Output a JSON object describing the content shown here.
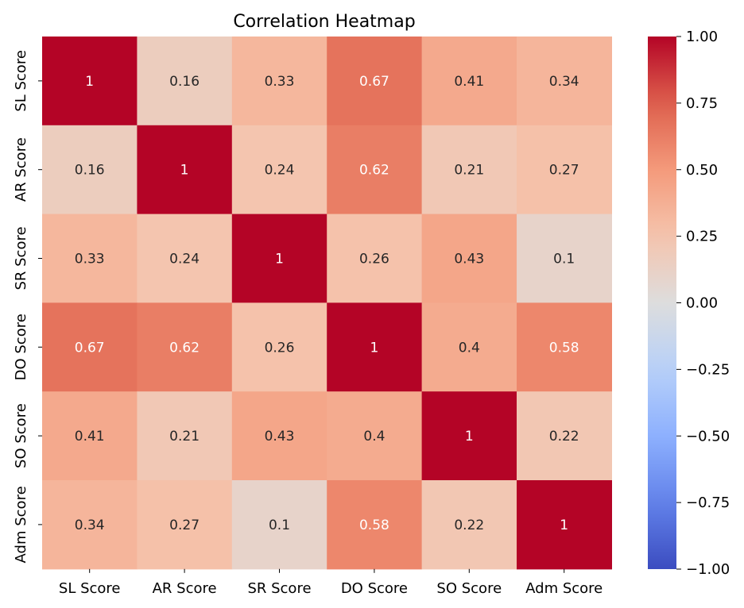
{
  "chart_data": {
    "type": "heatmap",
    "title": "Correlation Heatmap",
    "xlabel": "",
    "ylabel": "",
    "categories": [
      "SL Score",
      "AR Score",
      "SR Score",
      "DO Score",
      "SO Score",
      "Adm Score"
    ],
    "values": [
      [
        1,
        0.16,
        0.33,
        0.67,
        0.41,
        0.34
      ],
      [
        0.16,
        1,
        0.24,
        0.62,
        0.21,
        0.27
      ],
      [
        0.33,
        0.24,
        1,
        0.26,
        0.43,
        0.1
      ],
      [
        0.67,
        0.62,
        0.26,
        1,
        0.4,
        0.58
      ],
      [
        0.41,
        0.21,
        0.43,
        0.4,
        1,
        0.22
      ],
      [
        0.34,
        0.27,
        0.1,
        0.58,
        0.22,
        1
      ]
    ],
    "cell_labels": [
      [
        "1",
        "0.16",
        "0.33",
        "0.67",
        "0.41",
        "0.34"
      ],
      [
        "0.16",
        "1",
        "0.24",
        "0.62",
        "0.21",
        "0.27"
      ],
      [
        "0.33",
        "0.24",
        "1",
        "0.26",
        "0.43",
        "0.1"
      ],
      [
        "0.67",
        "0.62",
        "0.26",
        "1",
        "0.4",
        "0.58"
      ],
      [
        "0.41",
        "0.21",
        "0.43",
        "0.4",
        "1",
        "0.22"
      ],
      [
        "0.34",
        "0.27",
        "0.1",
        "0.58",
        "0.22",
        "1"
      ]
    ],
    "colormap": "coolwarm",
    "vmin": -1.0,
    "vmax": 1.0,
    "colorbar_ticks": [
      1.0,
      0.75,
      0.5,
      0.25,
      0.0,
      -0.25,
      -0.5,
      -0.75,
      -1.0
    ],
    "colorbar_tick_labels": [
      "1.00",
      "0.75",
      "0.50",
      "0.25",
      "0.00",
      "−0.25",
      "−0.50",
      "−0.75",
      "−1.00"
    ],
    "colors": {
      "cold": "#3b4cc0",
      "neutral": "#dddddd",
      "hot": "#b40426",
      "text_dark": "#262626",
      "text_light": "#ffffff"
    }
  }
}
